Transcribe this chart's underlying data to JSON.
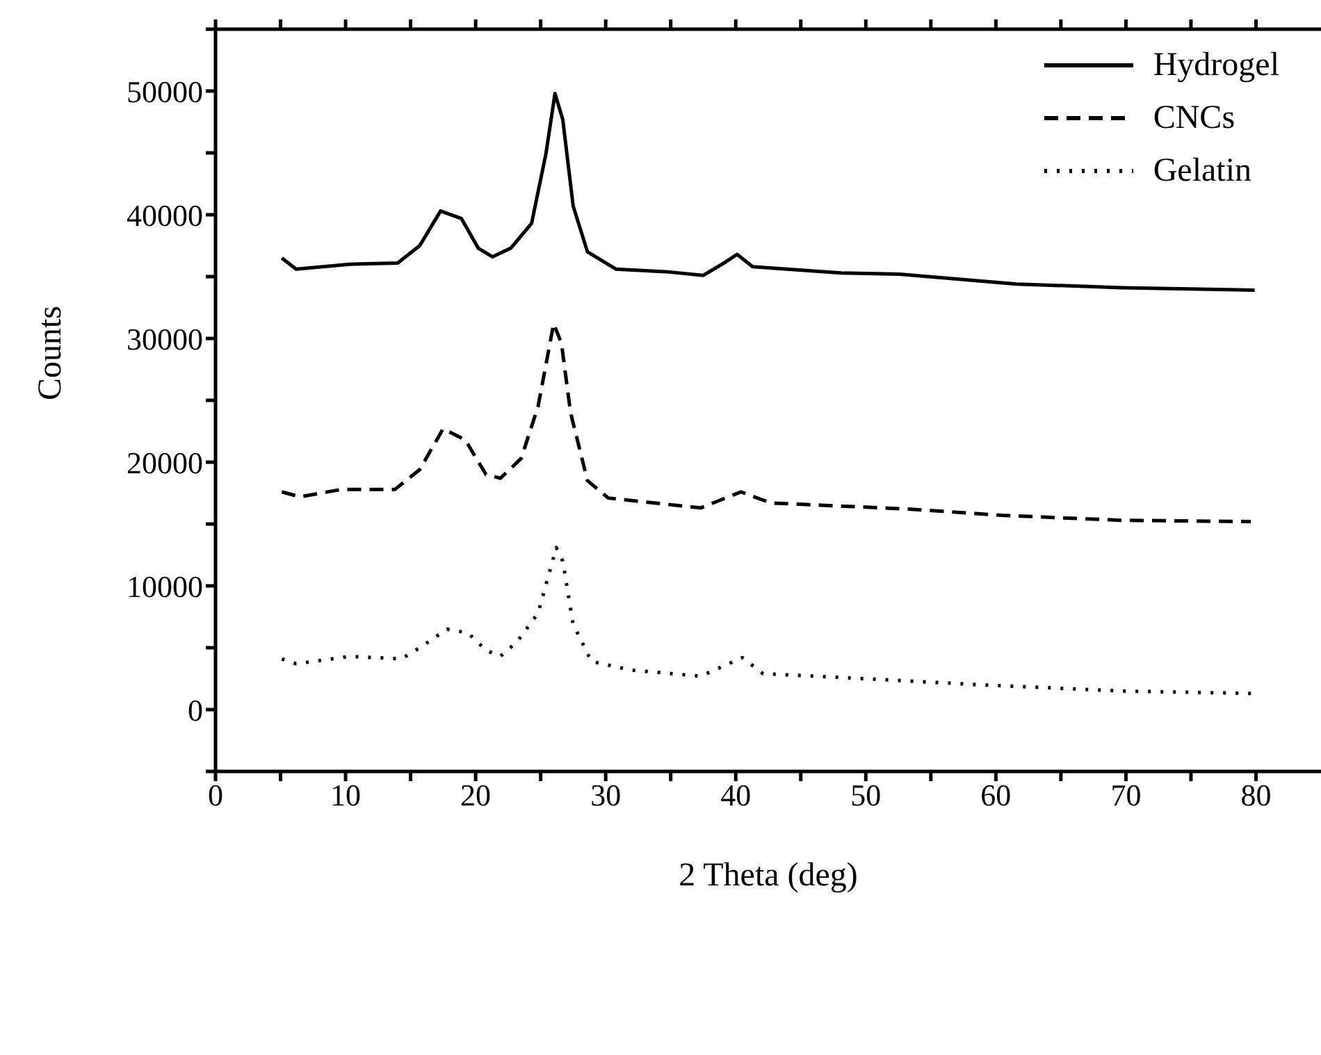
{
  "chart_data": {
    "type": "line",
    "xlabel": "2 Theta (deg)",
    "ylabel": "Counts",
    "xlim": [
      0,
      85
    ],
    "xticks": [
      0,
      {
        "value": 5,
        "label": null
      },
      10,
      {
        "value": 15,
        "label": null
      },
      20,
      {
        "value": 25,
        "label": null
      },
      30,
      {
        "value": 35,
        "label": null
      },
      40,
      {
        "value": 45,
        "label": null
      },
      50,
      {
        "value": 55,
        "label": null
      },
      60,
      {
        "value": 65,
        "label": null
      },
      70,
      {
        "value": 75,
        "label": null
      },
      80
    ],
    "ylim": [
      -5000,
      55000
    ],
    "yticks": [
      {
        "value": -5000,
        "label": null
      },
      0,
      {
        "value": 5000,
        "label": null
      },
      10000,
      {
        "value": 15000,
        "label": null
      },
      20000,
      {
        "value": 25000,
        "label": null
      },
      30000,
      {
        "value": 35000,
        "label": null
      },
      40000,
      {
        "value": 45000,
        "label": null
      },
      50000,
      {
        "value": 55000,
        "label": null
      }
    ],
    "grid": false,
    "legend": "top right",
    "marker": "none",
    "series": [
      {
        "name": "Hydrogel",
        "color": "#000000",
        "line_style": "solid",
        "x": [
          5.1,
          6.2,
          10.3,
          14.0,
          15.7,
          17.3,
          18.9,
          20.2,
          21.3,
          22.7,
          24.3,
          25.4,
          26.1,
          26.7,
          27.5,
          28.6,
          30.8,
          34.6,
          37.5,
          39.1,
          40.1,
          41.3,
          48.1,
          52.6,
          61.6,
          69.7,
          79.9
        ],
        "values": [
          36500,
          35600,
          36000,
          36100,
          37500,
          40300,
          39700,
          37300,
          36600,
          37300,
          39300,
          44900,
          49800,
          47700,
          40700,
          37000,
          35600,
          35400,
          35100,
          36100,
          36800,
          35800,
          35300,
          35200,
          34400,
          34100,
          33900
        ]
      },
      {
        "name": "CNCs",
        "color": "#000000",
        "line_style": "dashed",
        "x": [
          5.1,
          6.5,
          9.7,
          13.8,
          15.7,
          17.5,
          19.2,
          20.8,
          21.9,
          23.5,
          24.8,
          26.0,
          26.6,
          27.3,
          28.6,
          30.2,
          37.3,
          40.4,
          42.7,
          53.5,
          60.5,
          69.7,
          79.6
        ],
        "values": [
          17600,
          17200,
          17800,
          17800,
          19400,
          22700,
          21800,
          19000,
          18700,
          20300,
          24500,
          31200,
          29600,
          24000,
          18500,
          17100,
          16300,
          17600,
          16700,
          16200,
          15700,
          15300,
          15200
        ]
      },
      {
        "name": "Gelatin",
        "color": "#000000",
        "line_style": "dotted",
        "x": [
          5.1,
          6.2,
          10.3,
          14.3,
          15.7,
          17.8,
          19.4,
          20.8,
          21.9,
          23.2,
          24.8,
          26.2,
          26.7,
          27.5,
          28.9,
          31.9,
          37.3,
          40.5,
          42.1,
          48.1,
          58.9,
          69.7,
          79.9
        ],
        "values": [
          4100,
          3700,
          4300,
          4100,
          5000,
          6500,
          6200,
          4800,
          4300,
          5500,
          7800,
          13100,
          12000,
          6900,
          3900,
          3200,
          2700,
          4200,
          2900,
          2600,
          2000,
          1500,
          1300
        ]
      }
    ]
  }
}
